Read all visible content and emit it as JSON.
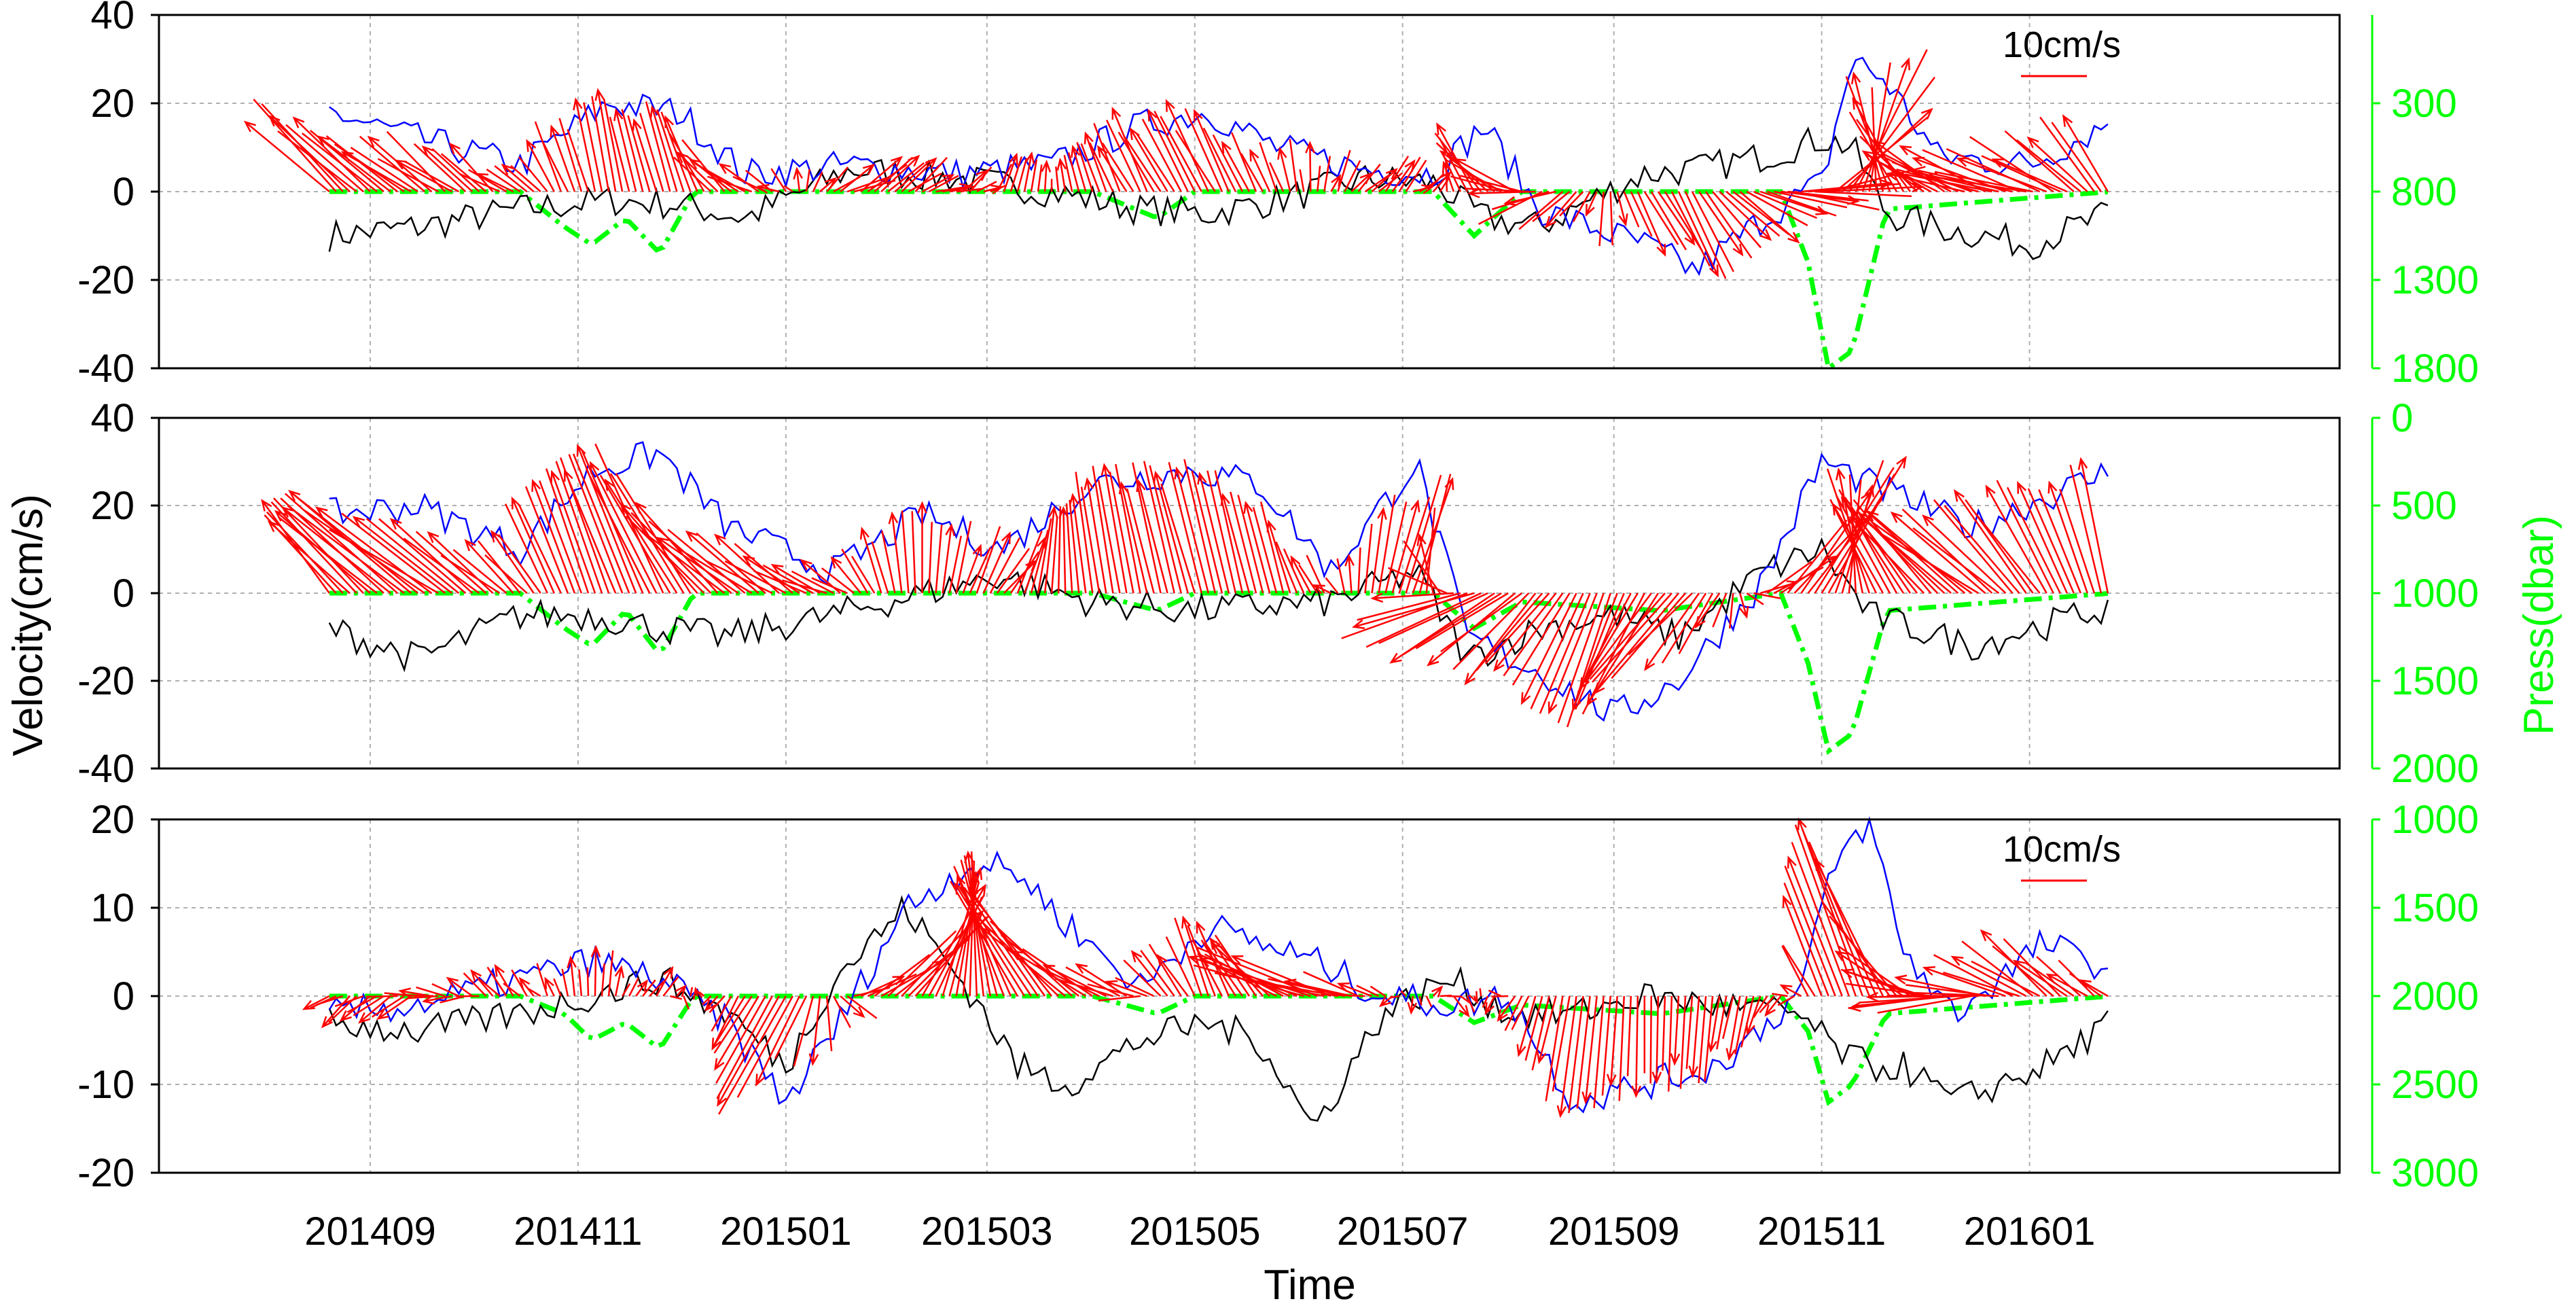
{
  "figure": {
    "xlabel": "Time",
    "ylabel": "Velocity(cm/s)",
    "y2label": "Press(dbar)",
    "x_ticks": [
      "201409",
      "201411",
      "201501",
      "201503",
      "201505",
      "201507",
      "201509",
      "201511",
      "201601"
    ]
  },
  "colors": {
    "u": "#0000ff",
    "v": "#000000",
    "arrows": "#ff0000",
    "pressure": "#00ff00",
    "axes": "#000000",
    "grid": "#b0b0b0"
  },
  "chart_data": [
    {
      "type": "line",
      "panel": 1,
      "time_range": [
        "2014-07-01",
        "2016-04-01"
      ],
      "ylim": [
        -40,
        40
      ],
      "y_ticks": [
        "40",
        "20",
        "0",
        "-20",
        "-40"
      ],
      "y2lim": [
        1800,
        -200
      ],
      "y2_ticks": [
        "300",
        "800",
        "1300",
        "1800"
      ],
      "scale_label": "10cm/s",
      "grid": true,
      "series": [
        {
          "key": "u",
          "x": [
            "2014-08-20",
            "2014-09-15",
            "2014-10-15",
            "2014-11-10",
            "2014-12-01",
            "2014-12-20",
            "2015-01-20",
            "2015-02-20",
            "2015-03-20",
            "2015-04-15",
            "2015-05-05",
            "2015-05-25",
            "2015-06-20",
            "2015-07-10",
            "2015-07-25",
            "2015-08-10",
            "2015-08-25",
            "2015-09-10",
            "2015-09-25",
            "2015-10-15",
            "2015-11-01",
            "2015-11-10",
            "2015-11-20",
            "2015-12-05",
            "2016-01-01",
            "2016-01-25"
          ],
          "y": [
            18,
            12,
            6,
            20,
            18,
            4,
            6,
            4,
            6,
            15,
            18,
            10,
            5,
            4,
            15,
            -4,
            -8,
            -12,
            -18,
            -6,
            2,
            30,
            25,
            8,
            6,
            16
          ]
        },
        {
          "key": "v",
          "x": [
            "2014-08-20",
            "2014-09-15",
            "2014-10-15",
            "2014-11-10",
            "2014-12-01",
            "2014-12-20",
            "2015-01-20",
            "2015-02-20",
            "2015-03-20",
            "2015-04-15",
            "2015-05-05",
            "2015-05-25",
            "2015-06-20",
            "2015-07-10",
            "2015-07-25",
            "2015-08-10",
            "2015-08-25",
            "2015-09-10",
            "2015-09-25",
            "2015-10-15",
            "2015-11-01",
            "2015-11-10",
            "2015-11-20",
            "2015-12-05",
            "2016-01-01",
            "2016-01-25"
          ],
          "y": [
            -10,
            -8,
            -4,
            -2,
            -3,
            -6,
            5,
            3,
            0,
            -4,
            -5,
            -2,
            3,
            2,
            -6,
            -8,
            -2,
            4,
            5,
            8,
            12,
            10,
            -5,
            -8,
            -12,
            -5
          ]
        },
        {
          "key": "pressure",
          "x": [
            "2014-08-20",
            "2014-10-15",
            "2014-10-28",
            "2014-11-05",
            "2014-11-15",
            "2014-11-25",
            "2014-12-05",
            "2015-04-01",
            "2015-04-20",
            "2015-05-01",
            "2015-07-10",
            "2015-07-22",
            "2015-08-05",
            "2015-10-20",
            "2015-10-28",
            "2015-11-03",
            "2015-11-10",
            "2015-11-20",
            "2016-01-25"
          ],
          "y": [
            800,
            800,
            1000,
            1100,
            950,
            1150,
            800,
            800,
            950,
            800,
            800,
            1050,
            800,
            800,
            1200,
            1800,
            1700,
            900,
            800
          ]
        }
      ]
    },
    {
      "type": "line",
      "panel": 2,
      "time_range": [
        "2014-07-01",
        "2016-04-01"
      ],
      "ylim": [
        -40,
        40
      ],
      "y_ticks": [
        "40",
        "20",
        "0",
        "-20",
        "-40"
      ],
      "y2lim": [
        2000,
        0
      ],
      "y2_ticks": [
        "0",
        "500",
        "1000",
        "1500",
        "2000"
      ],
      "grid": true,
      "series": [
        {
          "key": "u",
          "x": [
            "2014-08-20",
            "2014-09-15",
            "2014-10-15",
            "2014-11-05",
            "2014-11-25",
            "2014-12-15",
            "2015-01-15",
            "2015-02-10",
            "2015-03-05",
            "2015-04-01",
            "2015-05-01",
            "2015-05-20",
            "2015-06-10",
            "2015-07-05",
            "2015-07-20",
            "2015-08-10",
            "2015-09-01",
            "2015-09-20",
            "2015-10-15",
            "2015-11-01",
            "2015-11-15",
            "2015-12-15",
            "2016-01-25"
          ],
          "y": [
            18,
            20,
            10,
            28,
            32,
            15,
            5,
            18,
            10,
            25,
            28,
            25,
            5,
            30,
            -10,
            -18,
            -28,
            -20,
            3,
            30,
            25,
            15,
            28
          ]
        },
        {
          "key": "v",
          "x": [
            "2014-08-20",
            "2014-09-15",
            "2014-10-15",
            "2014-11-05",
            "2014-11-25",
            "2014-12-15",
            "2015-01-15",
            "2015-02-10",
            "2015-03-05",
            "2015-04-01",
            "2015-05-01",
            "2015-05-20",
            "2015-06-10",
            "2015-07-05",
            "2015-07-20",
            "2015-08-10",
            "2015-09-01",
            "2015-09-20",
            "2015-10-15",
            "2015-11-01",
            "2015-11-15",
            "2015-12-15",
            "2016-01-25"
          ],
          "y": [
            -8,
            -15,
            -5,
            -5,
            -8,
            -10,
            -5,
            0,
            4,
            -2,
            -4,
            -3,
            -2,
            5,
            -15,
            -8,
            -5,
            -10,
            5,
            10,
            -5,
            -12,
            -3
          ]
        },
        {
          "key": "pressure",
          "x": [
            "2014-08-20",
            "2014-10-15",
            "2014-10-28",
            "2014-11-05",
            "2014-11-15",
            "2014-11-25",
            "2014-12-05",
            "2015-04-01",
            "2015-04-20",
            "2015-05-01",
            "2015-07-10",
            "2015-07-22",
            "2015-08-05",
            "2015-09-15",
            "2015-10-20",
            "2015-10-28",
            "2015-11-03",
            "2015-11-10",
            "2015-11-20",
            "2016-01-25"
          ],
          "y": [
            1000,
            1000,
            1200,
            1300,
            1100,
            1350,
            1000,
            1000,
            1100,
            1000,
            1000,
            1200,
            1050,
            1100,
            1000,
            1400,
            1900,
            1800,
            1100,
            1000
          ]
        }
      ]
    },
    {
      "type": "line",
      "panel": 3,
      "time_range": [
        "2014-07-01",
        "2016-04-01"
      ],
      "ylim": [
        -20,
        20
      ],
      "y_ticks": [
        "20",
        "10",
        "0",
        "-10",
        "-20"
      ],
      "y2lim": [
        3000,
        1000
      ],
      "y2_ticks": [
        "1000",
        "1500",
        "2000",
        "2500",
        "3000"
      ],
      "scale_label": "10cm/s",
      "grid": true,
      "series": [
        {
          "key": "u",
          "x": [
            "2014-08-20",
            "2014-09-15",
            "2014-10-15",
            "2014-11-05",
            "2014-11-25",
            "2014-12-15",
            "2015-01-01",
            "2015-01-15",
            "2015-02-05",
            "2015-02-25",
            "2015-03-10",
            "2015-03-25",
            "2015-04-15",
            "2015-05-05",
            "2015-05-20",
            "2015-06-05",
            "2015-06-25",
            "2015-07-15",
            "2015-08-01",
            "2015-08-20",
            "2015-09-10",
            "2015-10-01",
            "2015-10-25",
            "2015-11-05",
            "2015-11-15",
            "2015-11-25",
            "2015-12-10",
            "2016-01-05",
            "2016-01-25"
          ],
          "y": [
            -2,
            -1,
            2,
            4,
            2,
            -3,
            -12,
            -4,
            10,
            15,
            14,
            8,
            1,
            8,
            6,
            4,
            0,
            -1,
            0,
            -12,
            -10,
            -8,
            0,
            15,
            20,
            5,
            -2,
            6,
            3
          ]
        },
        {
          "key": "v",
          "x": [
            "2014-08-20",
            "2014-09-15",
            "2014-10-15",
            "2014-11-05",
            "2014-11-25",
            "2014-12-15",
            "2015-01-01",
            "2015-01-15",
            "2015-02-05",
            "2015-02-25",
            "2015-03-10",
            "2015-03-25",
            "2015-04-15",
            "2015-05-05",
            "2015-05-20",
            "2015-06-05",
            "2015-06-25",
            "2015-07-15",
            "2015-08-01",
            "2015-08-20",
            "2015-09-10",
            "2015-10-01",
            "2015-10-25",
            "2015-11-05",
            "2015-11-15",
            "2015-11-25",
            "2015-12-10",
            "2016-01-05",
            "2016-01-25"
          ],
          "y": [
            -3,
            -4,
            -2,
            0,
            2,
            -2,
            -8,
            2,
            10,
            0,
            -8,
            -10,
            -5,
            -3,
            -5,
            -15,
            -2,
            2,
            -2,
            -2,
            0,
            -1,
            -2,
            -6,
            -8,
            -8,
            -12,
            -8,
            -3
          ]
        },
        {
          "key": "pressure",
          "x": [
            "2014-08-20",
            "2014-10-15",
            "2014-10-28",
            "2014-11-05",
            "2014-11-15",
            "2014-11-25",
            "2014-12-05",
            "2015-04-01",
            "2015-04-20",
            "2015-05-01",
            "2015-07-10",
            "2015-07-22",
            "2015-08-05",
            "2015-09-15",
            "2015-10-20",
            "2015-10-28",
            "2015-11-03",
            "2015-11-10",
            "2015-11-20",
            "2016-01-25"
          ],
          "y": [
            2000,
            2000,
            2100,
            2250,
            2150,
            2300,
            2000,
            2000,
            2100,
            2000,
            2000,
            2150,
            2050,
            2100,
            2000,
            2200,
            2600,
            2500,
            2100,
            2000
          ]
        }
      ]
    }
  ]
}
